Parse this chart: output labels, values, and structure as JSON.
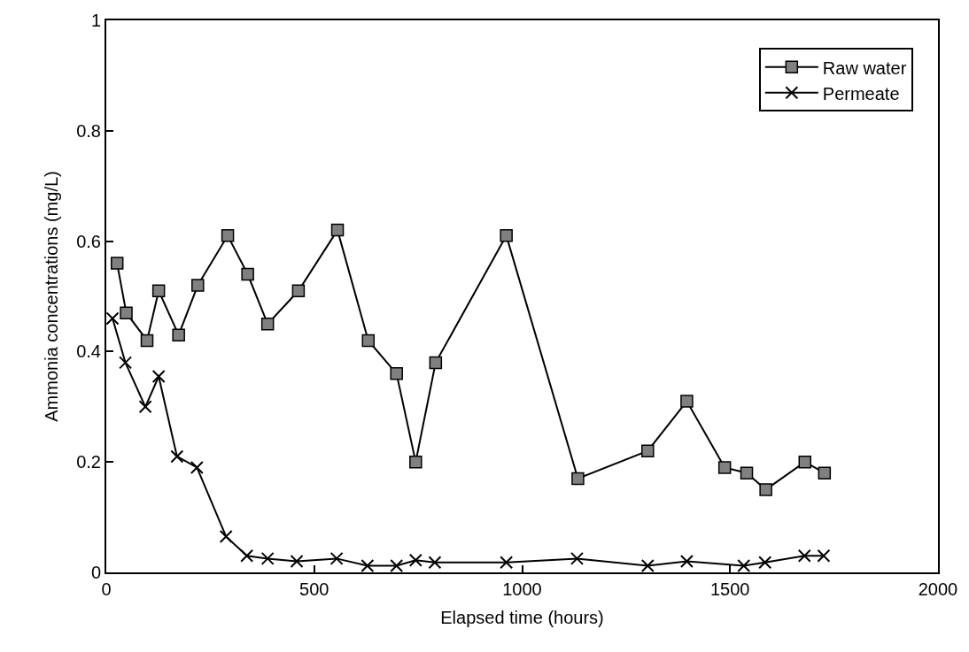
{
  "chart_data": {
    "type": "line",
    "xlabel": "Elapsed time (hours)",
    "ylabel": "Ammonia concentrations (mg/L)",
    "xlim": [
      0,
      2000
    ],
    "xticks": [
      0,
      500,
      1000,
      1500,
      2000
    ],
    "ylim": [
      0,
      1
    ],
    "yticks": [
      0,
      0.2,
      0.4,
      0.6,
      0.8,
      1
    ],
    "legend": "top right",
    "series": [
      {
        "name": "Raw water",
        "color": "#808080",
        "marker": "square",
        "x": [
          26,
          48,
          98,
          126,
          174,
          220,
          292,
          340,
          388,
          462,
          556,
          630,
          698,
          744,
          792,
          962,
          1134,
          1302,
          1396,
          1487,
          1540,
          1586,
          1680,
          1727
        ],
        "values": [
          0.56,
          0.47,
          0.42,
          0.51,
          0.43,
          0.52,
          0.61,
          0.54,
          0.45,
          0.51,
          0.62,
          0.42,
          0.36,
          0.2,
          0.38,
          0.61,
          0.17,
          0.22,
          0.31,
          0.19,
          0.18,
          0.15,
          0.2,
          0.18
        ]
      },
      {
        "name": "Permeate",
        "color": "#000000",
        "marker": "cross",
        "x": [
          15,
          46,
          94,
          126,
          170,
          218,
          288,
          338,
          388,
          458,
          554,
          628,
          698,
          744,
          790,
          962,
          1132,
          1302,
          1396,
          1533,
          1584,
          1679,
          1725
        ],
        "values": [
          0.46,
          0.38,
          0.3,
          0.355,
          0.21,
          0.19,
          0.065,
          0.03,
          0.025,
          0.02,
          0.025,
          0.012,
          0.012,
          0.022,
          0.018,
          0.018,
          0.025,
          0.012,
          0.02,
          0.012,
          0.018,
          0.03,
          0.03
        ]
      }
    ]
  }
}
